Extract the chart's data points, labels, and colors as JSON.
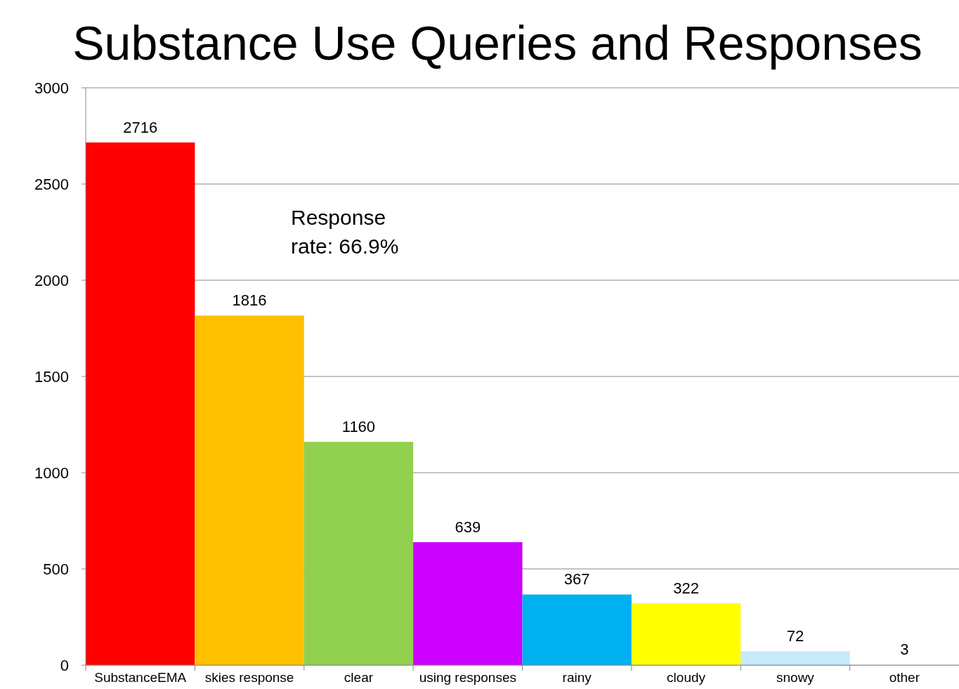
{
  "chart_data": {
    "type": "bar",
    "title": "Substance Use Queries and Responses",
    "categories": [
      "SubstanceEMA",
      "skies response",
      "clear",
      "using responses",
      "rainy",
      "cloudy",
      "snowy",
      "other"
    ],
    "values": [
      2716,
      1816,
      1160,
      639,
      367,
      322,
      72,
      3
    ],
    "colors": [
      "#ff0000",
      "#ffc000",
      "#92d050",
      "#cc00ff",
      "#00b0f0",
      "#ffff00",
      "#c6e9fb",
      "#ffffff"
    ],
    "ylim": [
      0,
      3000
    ],
    "yticks": [
      0,
      500,
      1000,
      1500,
      2000,
      2500,
      3000
    ],
    "grid": "y",
    "data_labels": true,
    "annotations": [
      "Response rate: 66.9%"
    ]
  }
}
